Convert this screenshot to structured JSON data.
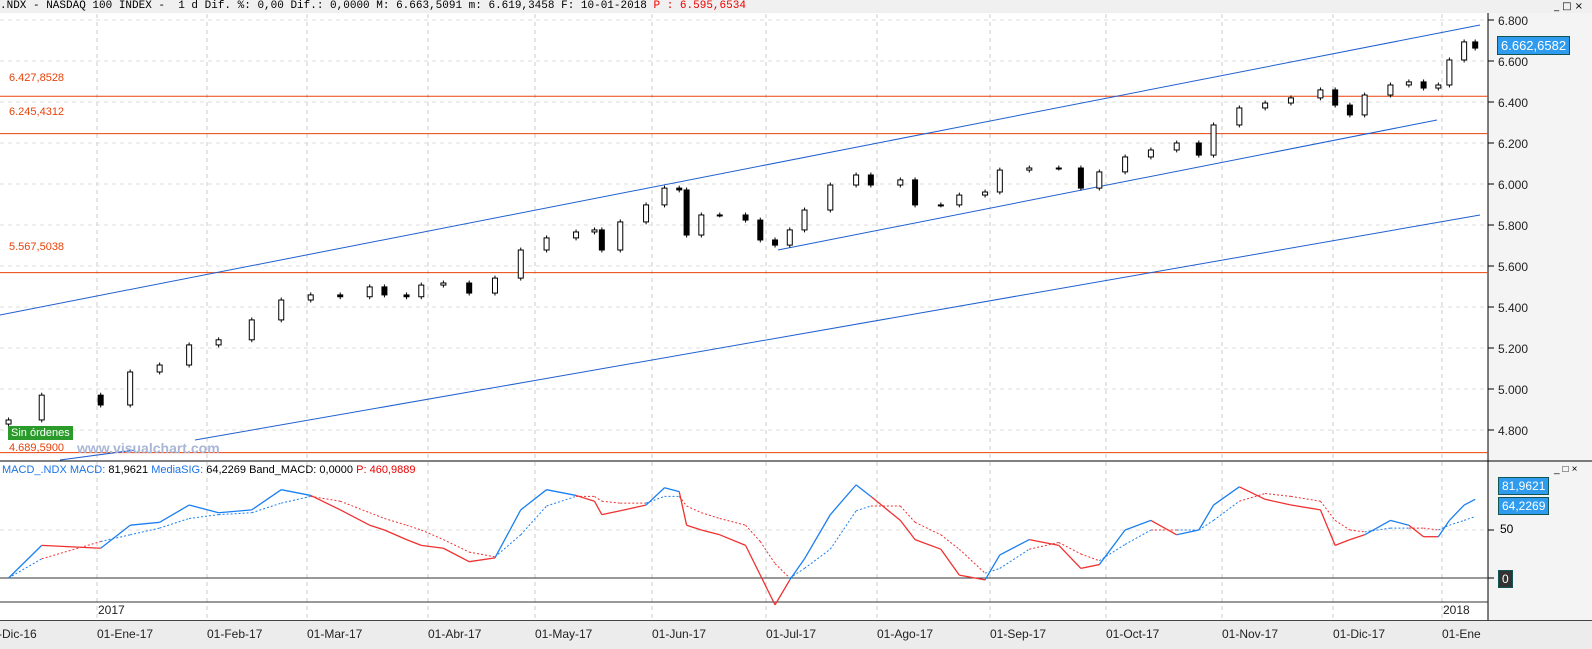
{
  "header": {
    "text": ".NDX - NASDAQ 100 INDEX -  1 d Dif. %: 0,00 Dif.: 0,0000 M: 6.663,5091 m: 6.619,3458 F: 10-01-2018 ",
    "p_label": "P : 6.595,6534",
    "window_buttons": "_□×"
  },
  "price_panel": {
    "last_value": "6.662,6582",
    "status_badge": "Sin órdenes",
    "watermark": "www.visualchart.com",
    "levels": [
      {
        "label": "6.427,8528",
        "value": 6427.8528
      },
      {
        "label": "6.245,4312",
        "value": 6245.4312
      },
      {
        "label": "5.567,5038",
        "value": 5567.5038
      },
      {
        "label": "4.689,5900",
        "value": 4689.59
      }
    ],
    "y_ticks": [
      "6.800",
      "6.600",
      "6.400",
      "6.200",
      "6.000",
      "5.800",
      "5.600",
      "5.400",
      "5.200",
      "5.000",
      "4.800"
    ]
  },
  "macd_panel": {
    "legend": {
      "name": "MACD_.NDX",
      "macd_label": "MACD:",
      "macd_value": "81,9621",
      "sig_label": "MediaSIG:",
      "sig_value": "64,2269",
      "band_label": "Band_MACD:",
      "band_value": "0,0000",
      "p_label": "P:",
      "p_value": "460,9889"
    },
    "tag_macd": "81,9621",
    "tag_sig": "64,2269",
    "tick_50": "50",
    "tag_zero": "0",
    "window_buttons": "_□×"
  },
  "x_axis": {
    "labels": [
      "-Dic-16",
      "01-Ene-17",
      "01-Feb-17",
      "01-Mar-17",
      "01-Abr-17",
      "01-May-17",
      "01-Jun-17",
      "01-Jul-17",
      "01-Ago-17",
      "01-Sep-17",
      "01-Oct-17",
      "01-Nov-17",
      "01-Dic-17",
      "01-Ene"
    ],
    "years": [
      "2017",
      "2018"
    ]
  },
  "colors": {
    "channel": "#1f5fd0",
    "levels": "#e8420a",
    "macd": "#1a7ff0",
    "macd_below": "#f03030",
    "signal": "#1a7ff0",
    "tag": "#2f9bef"
  },
  "chart_data": {
    "type": "candlestick+macd",
    "dates": [
      "2016-12-08",
      "2016-12-17",
      "2017-01-02",
      "2017-01-10",
      "2017-01-18",
      "2017-01-26",
      "2017-02-03",
      "2017-02-12",
      "2017-02-20",
      "2017-02-28",
      "2017-03-08",
      "2017-03-16",
      "2017-03-20",
      "2017-03-26",
      "2017-03-30",
      "2017-04-05",
      "2017-04-12",
      "2017-04-19",
      "2017-04-26",
      "2017-05-03",
      "2017-05-11",
      "2017-05-16",
      "2017-05-18",
      "2017-05-23",
      "2017-05-30",
      "2017-06-04",
      "2017-06-08",
      "2017-06-10",
      "2017-06-14",
      "2017-06-19",
      "2017-06-26",
      "2017-06-30",
      "2017-07-04",
      "2017-07-08",
      "2017-07-12",
      "2017-07-19",
      "2017-07-26",
      "2017-07-30",
      "2017-08-07",
      "2017-08-11",
      "2017-08-18",
      "2017-08-23",
      "2017-08-30",
      "2017-09-03",
      "2017-09-11",
      "2017-09-19",
      "2017-09-25",
      "2017-09-30",
      "2017-10-07",
      "2017-10-14",
      "2017-10-21",
      "2017-10-27",
      "2017-10-31",
      "2017-11-07",
      "2017-11-14",
      "2017-11-21",
      "2017-11-29",
      "2017-12-03",
      "2017-12-07",
      "2017-12-11",
      "2017-12-18",
      "2017-12-23",
      "2017-12-27",
      "2017-12-31",
      "2018-01-03",
      "2018-01-07",
      "2018-01-10"
    ],
    "close": [
      4849,
      4970,
      4922,
      5083,
      5117,
      5215,
      5240,
      5337,
      5434,
      5459,
      5450,
      5498,
      5459,
      5450,
      5507,
      5517,
      5468,
      5541,
      5678,
      5737,
      5766,
      5776,
      5678,
      5815,
      5898,
      5980,
      5971,
      5751,
      5849,
      5849,
      5824,
      5727,
      5702,
      5776,
      5873,
      5995,
      6044,
      5995,
      6020,
      5898,
      5898,
      5946,
      5961,
      6068,
      6078,
      6078,
      5980,
      6059,
      6132,
      6166,
      6200,
      6141,
      6288,
      6371,
      6395,
      6420,
      6459,
      6385,
      6337,
      6434,
      6483,
      6498,
      6468,
      6483,
      6605,
      6693,
      6663
    ],
    "macd": [
      0,
      34,
      31,
      55,
      58,
      76,
      68,
      71,
      92,
      86,
      71,
      55,
      50,
      40,
      34,
      31,
      17,
      21,
      71,
      92,
      86,
      80,
      66,
      70,
      76,
      94,
      90,
      55,
      50,
      45,
      34,
      3,
      -28,
      -2,
      20,
      66,
      97,
      85,
      60,
      40,
      30,
      3,
      -2,
      24,
      40,
      34,
      10,
      14,
      50,
      60,
      45,
      50,
      76,
      95,
      82,
      76,
      71,
      34,
      40,
      45,
      60,
      55,
      43,
      43,
      60,
      76,
      82
    ],
    "signal": [
      0,
      20,
      38,
      45,
      52,
      62,
      66,
      68,
      78,
      85,
      80,
      68,
      62,
      55,
      50,
      40,
      27,
      22,
      45,
      75,
      85,
      85,
      80,
      78,
      78,
      85,
      85,
      75,
      68,
      62,
      55,
      38,
      15,
      0,
      10,
      30,
      70,
      75,
      75,
      58,
      45,
      30,
      5,
      10,
      30,
      37,
      25,
      18,
      35,
      50,
      50,
      50,
      60,
      80,
      88,
      85,
      80,
      60,
      50,
      48,
      52,
      52,
      52,
      50,
      55,
      60,
      64
    ],
    "price_ylim": [
      4680,
      6850
    ],
    "macd_ylim": [
      -30,
      95
    ],
    "macd_zero_line": 0
  }
}
